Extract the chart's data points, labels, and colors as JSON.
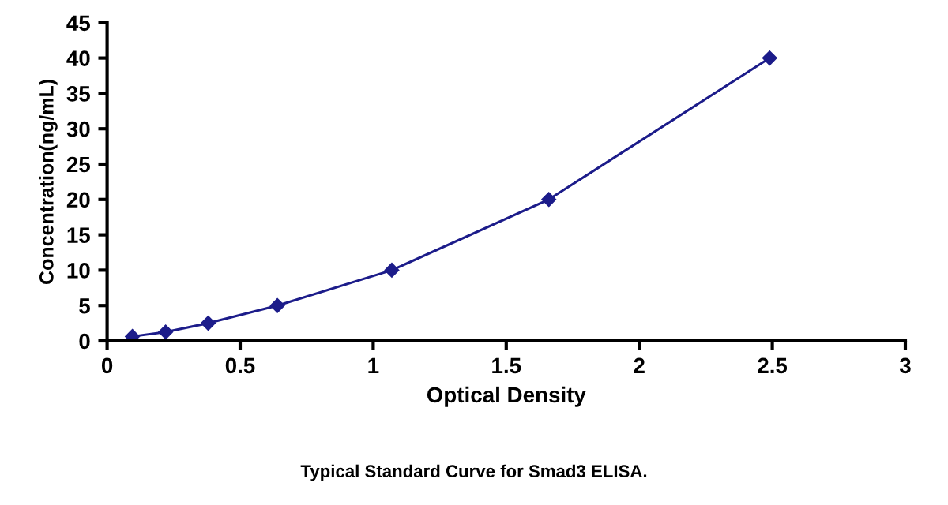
{
  "chart_data": {
    "type": "line",
    "xlabel": "Optical Density",
    "ylabel": "Concentration(ng/mL)",
    "annotations": [
      "Typical Standard Curve for Smad3 ELISA."
    ],
    "marker": "diamond",
    "line_style": "solid",
    "grid": false,
    "legend": false,
    "series": [
      {
        "color": "#1c1c8a",
        "x": [
          0.095,
          0.22,
          0.38,
          0.64,
          1.07,
          1.66,
          2.49
        ],
        "values": [
          0.625,
          1.25,
          2.5,
          5,
          10,
          20,
          40
        ]
      }
    ],
    "xlim": [
      0,
      3
    ],
    "xticks": [
      0,
      0.5,
      1,
      1.5,
      2,
      2.5,
      3
    ],
    "ylim": [
      0,
      45
    ],
    "yticks": [
      0,
      5,
      10,
      15,
      20,
      25,
      30,
      35,
      40,
      45
    ]
  }
}
